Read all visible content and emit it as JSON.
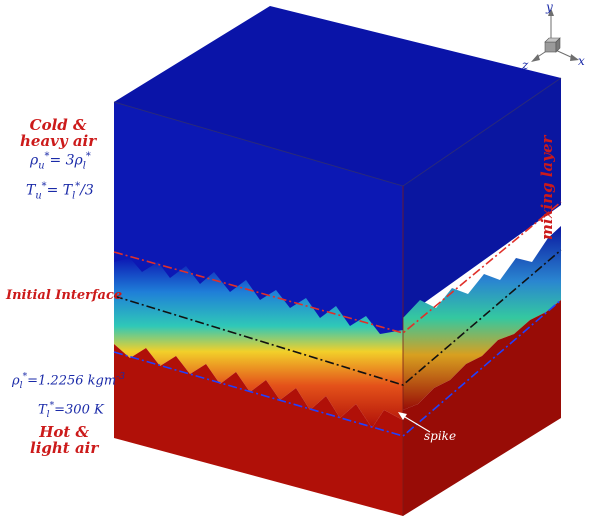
{
  "labels": {
    "cold_line1": "Cold &",
    "cold_line2": "heavy air",
    "rho_u": "ρ",
    "rho_u_sub": "u",
    "rho_u_sup": "*",
    "rho_u_eq": "= 3ρ",
    "rho_u_rhs_sub": "l",
    "rho_u_rhs_sup": "*",
    "t_u": "T",
    "t_u_sub": "u",
    "t_u_sup": "*",
    "t_u_eq": "= T",
    "t_u_rhs_sub": "l",
    "t_u_rhs_sup": "*",
    "t_u_tail": "/3",
    "initial_interface": "Initial Interface",
    "rho_l": "ρ",
    "rho_l_sub": "l",
    "rho_l_sup": "*",
    "rho_l_eq": "=1.2256 kgm",
    "rho_l_exp": "-3",
    "t_l": "T",
    "t_l_sub": "l",
    "t_l_sup": "*",
    "t_l_eq": "=300 K",
    "hot_line1": "Hot &",
    "hot_line2": "light air",
    "mixing_layer": "mixing layer",
    "spike": "spike"
  },
  "axes": {
    "y": "y",
    "x": "x",
    "z": "z"
  },
  "colors": {
    "heavy": "#0a14a8",
    "heavy_side": "#0c18b4",
    "heavy_right": "#0a16a0",
    "light": "#b01008",
    "light_right": "#980c06",
    "red_label": "#cc1a1a",
    "blue_label": "#1a2aa8"
  }
}
